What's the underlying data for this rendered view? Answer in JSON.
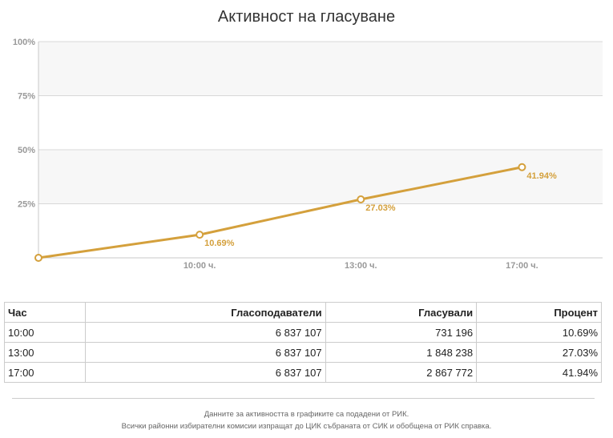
{
  "chart_data": {
    "type": "line",
    "title": "Активност на гласуване",
    "categories": [
      "",
      "10:00 ч.",
      "13:00 ч.",
      "17:00 ч."
    ],
    "x_label_shown": [
      false,
      true,
      true,
      true
    ],
    "values": [
      0,
      10.69,
      27.03,
      41.94
    ],
    "value_labels": [
      "",
      "10.69%",
      "27.03%",
      "41.94%"
    ],
    "y_ticks": [
      "100%",
      "75%",
      "50%",
      "25%"
    ],
    "y_tick_values": [
      100,
      75,
      50,
      25
    ],
    "ylim": [
      0,
      100
    ],
    "xlabel": "",
    "ylabel": "",
    "grid": true,
    "line_color": "#d4a03c"
  },
  "table": {
    "headers": [
      "Час",
      "Гласоподаватели",
      "Гласували",
      "Процент"
    ],
    "rows": [
      [
        "10:00",
        "6 837 107",
        "731 196",
        "10.69%"
      ],
      [
        "13:00",
        "6 837 107",
        "1 848 238",
        "27.03%"
      ],
      [
        "17:00",
        "6 837 107",
        "2 867 772",
        "41.94%"
      ]
    ]
  },
  "notes": {
    "line1": "Данните за активността в графиките са подадени от РИК.",
    "line2": "Всички районни избирателни комисии изпращат до ЦИК събраната от СИК и обобщена от РИК справка."
  }
}
